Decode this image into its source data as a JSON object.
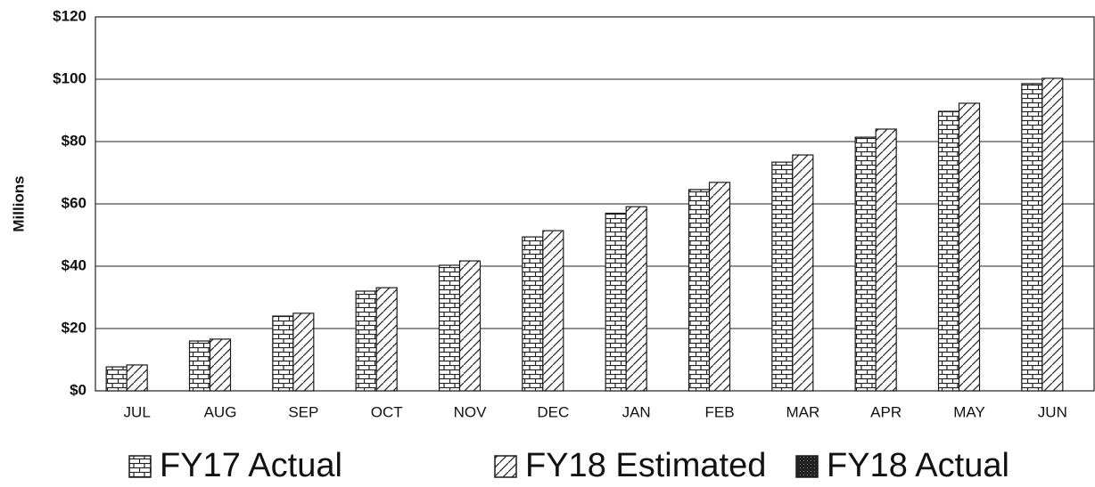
{
  "chart_data": {
    "type": "bar",
    "y_label": "Millions",
    "categories": [
      "JUL",
      "AUG",
      "SEP",
      "OCT",
      "NOV",
      "DEC",
      "JAN",
      "FEB",
      "MAR",
      "APR",
      "MAY",
      "JUN"
    ],
    "series": [
      {
        "name": "FY17 Actual",
        "color": "#1a1a1a",
        "values": [
          7.7,
          16,
          24,
          32,
          40.3,
          49.4,
          57,
          64.6,
          73.4,
          81.4,
          89.7,
          98.6
        ]
      },
      {
        "name": "FY18 Estimated",
        "color": "#1a1a1a",
        "values": [
          8.3,
          16.6,
          24.9,
          33.1,
          41.7,
          51.4,
          59.1,
          66.9,
          75.7,
          84,
          92.3,
          100.3
        ]
      },
      {
        "name": "FY18 Actual",
        "color": "#1a1a1a",
        "values": [
          null,
          null,
          null,
          null,
          null,
          null,
          null,
          null,
          null,
          null,
          null,
          null
        ]
      }
    ],
    "ylim": [
      0,
      120
    ],
    "yticks": [
      {
        "value": 0,
        "label": "$0"
      },
      {
        "value": 20,
        "label": "$20"
      },
      {
        "value": 40,
        "label": "$40"
      },
      {
        "value": 60,
        "label": "$60"
      },
      {
        "value": 80,
        "label": "$80"
      },
      {
        "value": 100,
        "label": "$100"
      },
      {
        "value": 120,
        "label": "$120"
      }
    ],
    "grid": true
  }
}
